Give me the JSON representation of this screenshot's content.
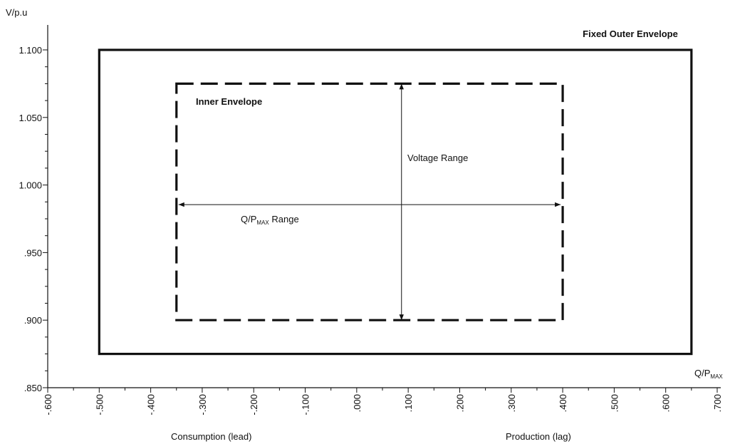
{
  "chart_data": {
    "type": "envelope",
    "y_axis_label": "V/p.u",
    "x_axis_label": {
      "main": "Q/P",
      "sub": "MAX"
    },
    "x_left_label": "Consumption (lead)",
    "x_right_label": "Production (lag)",
    "xlim": [
      -0.6,
      0.7
    ],
    "ylim": [
      0.85,
      1.1
    ],
    "xticks": [
      {
        "value": -0.6,
        "label": "-.600"
      },
      {
        "value": -0.5,
        "label": "-.500"
      },
      {
        "value": -0.4,
        "label": "-.400"
      },
      {
        "value": -0.3,
        "label": "-.300"
      },
      {
        "value": -0.2,
        "label": "-.200"
      },
      {
        "value": -0.1,
        "label": "-.100"
      },
      {
        "value": 0,
        "label": ".000"
      },
      {
        "value": 0.1,
        "label": ".100"
      },
      {
        "value": 0.2,
        "label": ".200"
      },
      {
        "value": 0.3,
        "label": ".300"
      },
      {
        "value": 0.4,
        "label": ".400"
      },
      {
        "value": 0.5,
        "label": ".500"
      },
      {
        "value": 0.6,
        "label": ".600"
      },
      {
        "value": 0.7,
        "label": ".700"
      }
    ],
    "yticks": [
      {
        "value": 0.85,
        "label": ".850"
      },
      {
        "value": 0.9,
        "label": ".900"
      },
      {
        "value": 0.95,
        "label": ".950"
      },
      {
        "value": 1.0,
        "label": "1.000"
      },
      {
        "value": 1.05,
        "label": "1.050"
      },
      {
        "value": 1.1,
        "label": "1.100"
      }
    ],
    "xminorticks": [
      -0.55,
      -0.45,
      -0.35,
      -0.25,
      -0.15,
      -0.05,
      0.05,
      0.15,
      0.25,
      0.35,
      0.45,
      0.55,
      0.65
    ],
    "yminorticks": [
      0.8625,
      0.875,
      0.8875,
      0.9125,
      0.925,
      0.9375,
      0.9625,
      0.975,
      0.9875,
      1.0125,
      1.025,
      1.0375,
      1.0625,
      1.075,
      1.0875
    ],
    "outer": {
      "label": "Fixed Outer Envelope",
      "x": [
        -0.5,
        0.65
      ],
      "y": [
        0.875,
        1.1
      ]
    },
    "inner": {
      "label": "Inner Envelope",
      "x": [
        -0.35,
        0.4
      ],
      "y": [
        0.9,
        1.075
      ]
    },
    "voltage_range": {
      "label": "Voltage Range",
      "x": 0.087,
      "y": [
        0.9,
        1.075
      ]
    },
    "q_range": {
      "label": {
        "main": "Q/P",
        "sub": "MAX",
        "rest": " Range"
      },
      "y": 0.9855,
      "x": [
        -0.35,
        0.4
      ]
    }
  }
}
